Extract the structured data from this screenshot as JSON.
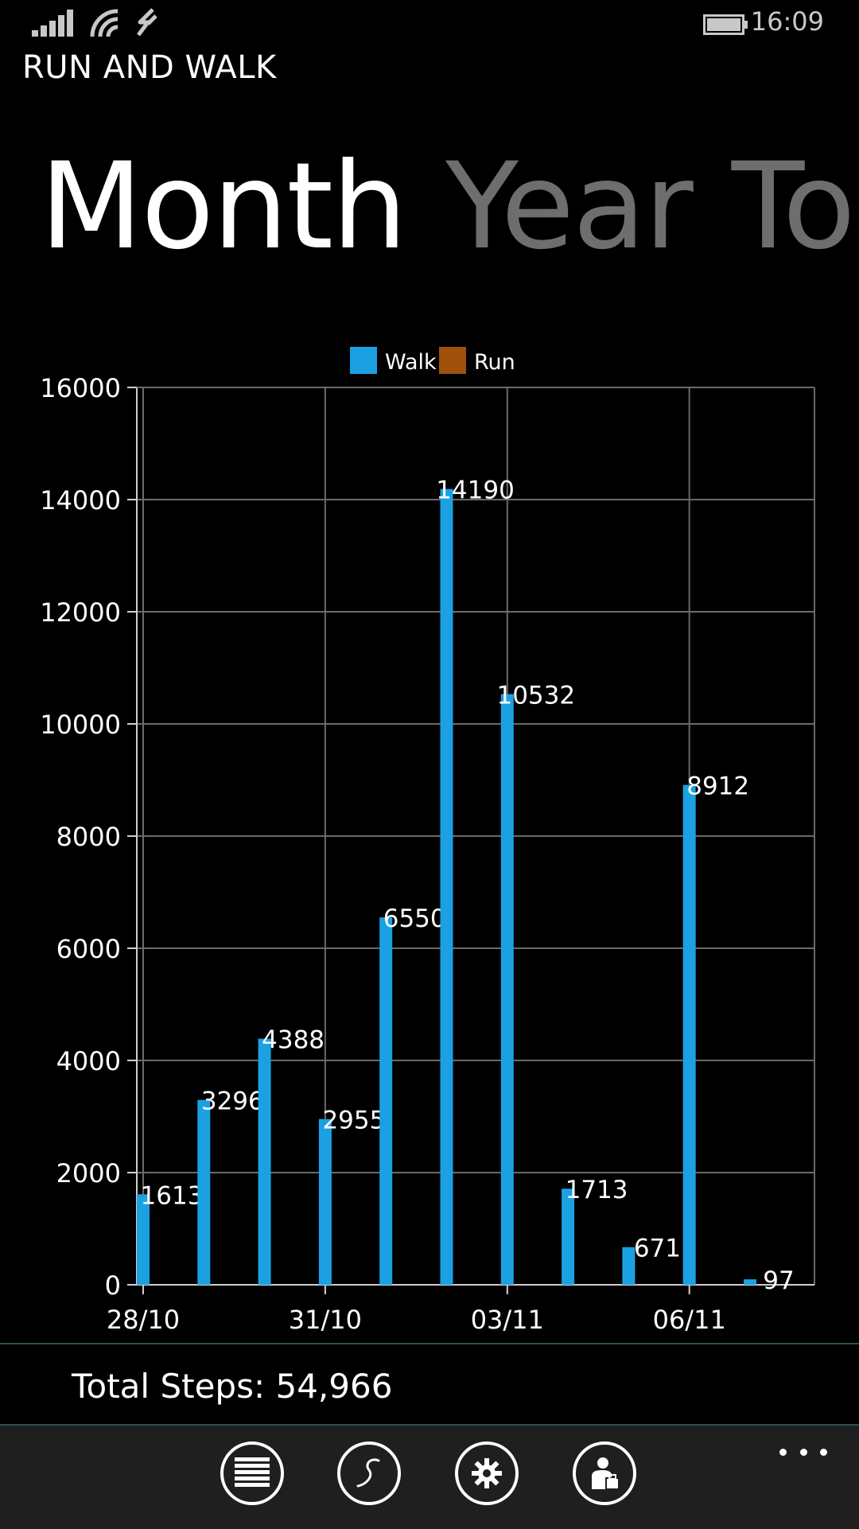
{
  "status_bar": {
    "time": "16:09",
    "icons": [
      "signal-icon",
      "wifi-icon",
      "data-sense-icon",
      "battery-icon"
    ]
  },
  "app": {
    "title": "RUN AND WALK"
  },
  "pivot": {
    "items": [
      {
        "label": "Month",
        "active": true
      },
      {
        "label": "Year",
        "active": false
      },
      {
        "label": "To",
        "active": false
      }
    ]
  },
  "chart_data": {
    "type": "bar",
    "legend": [
      {
        "name": "Walk",
        "color": "#1ba1e2"
      },
      {
        "name": "Run",
        "color": "#a0500a"
      }
    ],
    "x_tick_labels": [
      "28/10",
      "31/10",
      "03/11",
      "06/11"
    ],
    "ylim": [
      0,
      16000
    ],
    "y_ticks": [
      0,
      2000,
      4000,
      6000,
      8000,
      10000,
      12000,
      14000,
      16000
    ],
    "grid": true,
    "legend_position": "top-center",
    "series": [
      {
        "name": "Walk",
        "color": "#1ba1e2",
        "values": [
          1613,
          3296,
          4388,
          2955,
          6550,
          14190,
          10532,
          1713,
          671,
          8912,
          97
        ],
        "labels": [
          "1613",
          "3296",
          "4388",
          "2955",
          "6550",
          "14190",
          "10532",
          "1713",
          "671",
          "8912",
          "97"
        ]
      }
    ]
  },
  "summary": {
    "label": "Total Steps:",
    "value": "54,966"
  },
  "app_bar": {
    "buttons": [
      "list-icon",
      "route-icon",
      "settings-icon",
      "profile-icon"
    ],
    "more_label": "more"
  }
}
